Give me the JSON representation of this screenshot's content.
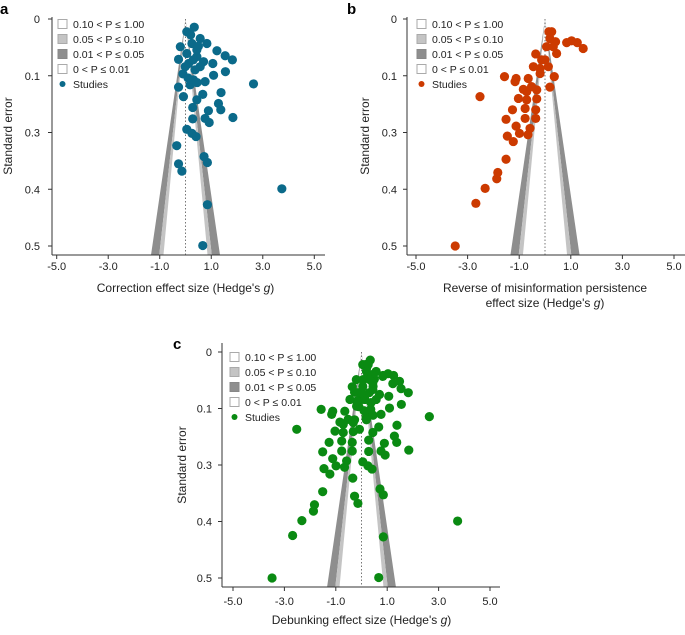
{
  "chart_data": [
    {
      "type": "scatter",
      "subtype": "funnel",
      "panel_label": "a",
      "xlabel": "Correction effect size (Hedge's g)",
      "xlabel_lines": [
        "Correction effect size (Hedge's ",
        "g",
        ")"
      ],
      "ylabel": "Standard error",
      "xlim": [
        -5.5,
        5.5
      ],
      "ylim": [
        0.52,
        -0.01
      ],
      "y_inverted": true,
      "x_ticks": [
        -5,
        -3,
        -1,
        1,
        3,
        5
      ],
      "x_tick_labels": [
        "-5.0",
        "-3.0",
        "-1.0",
        "1.0",
        "3.0",
        "5.0"
      ],
      "y_ticks": [
        0,
        0.125,
        0.25,
        0.375,
        0.5
      ],
      "y_tick_labels": [
        "0",
        "0.1",
        "0.3",
        "0.4",
        "0.5"
      ],
      "funnel_center": 0,
      "point_color": "#0b6a8a",
      "legend": [
        "0.10 < P ≤ 1.00",
        "0.05 < P ≤ 0.10",
        "0.01 < P ≤ 0.05",
        "0 < P ≤ 0.01",
        "Studies"
      ],
      "points": [
        [
          0.34,
          0.018
        ],
        [
          0.05,
          0.028
        ],
        [
          0.57,
          0.043
        ],
        [
          0.83,
          0.054
        ],
        [
          1.22,
          0.07
        ],
        [
          1.54,
          0.081
        ],
        [
          1.82,
          0.09
        ],
        [
          -0.2,
          0.061
        ],
        [
          -0.27,
          0.089
        ],
        [
          0.05,
          0.076
        ],
        [
          0.44,
          0.083
        ],
        [
          0.7,
          0.094
        ],
        [
          1.06,
          0.098
        ],
        [
          1.55,
          0.116
        ],
        [
          1.09,
          0.124
        ],
        [
          -0.1,
          0.121
        ],
        [
          0.31,
          0.134
        ],
        [
          2.64,
          0.143
        ],
        [
          -0.27,
          0.15
        ],
        [
          0.76,
          0.138
        ],
        [
          1.38,
          0.162
        ],
        [
          0.67,
          0.166
        ],
        [
          -0.08,
          0.171
        ],
        [
          0.44,
          0.178
        ],
        [
          1.28,
          0.186
        ],
        [
          0.28,
          0.195
        ],
        [
          0.89,
          0.202
        ],
        [
          1.37,
          0.2
        ],
        [
          1.84,
          0.217
        ],
        [
          0.28,
          0.22
        ],
        [
          0.76,
          0.219
        ],
        [
          0.92,
          0.228
        ],
        [
          0.05,
          0.243
        ],
        [
          0.25,
          0.252
        ],
        [
          0.41,
          0.259
        ],
        [
          -0.34,
          0.279
        ],
        [
          -0.27,
          0.319
        ],
        [
          -0.14,
          0.335
        ],
        [
          0.72,
          0.303
        ],
        [
          0.85,
          0.316
        ],
        [
          3.74,
          0.374
        ],
        [
          0.85,
          0.409
        ],
        [
          0.67,
          0.499
        ],
        [
          0.25,
          0.054
        ],
        [
          0.44,
          0.068
        ],
        [
          0.12,
          0.098
        ],
        [
          0.57,
          0.105
        ],
        [
          0.37,
          0.112
        ],
        [
          0.18,
          0.145
        ],
        [
          -0.01,
          0.105
        ],
        [
          0.2,
          0.035
        ],
        [
          0.5,
          0.06
        ],
        [
          0.3,
          0.09
        ],
        [
          0.1,
          0.13
        ],
        [
          0.45,
          0.14
        ]
      ]
    },
    {
      "type": "scatter",
      "subtype": "funnel",
      "panel_label": "b",
      "xlabel": "Reverse of misinformation persistence effect size (Hedge's g)",
      "xlabel_lines": [
        "Reverse of misinformation persistence",
        "effect size (Hedge's ",
        "g",
        ")"
      ],
      "ylabel": "Standard error",
      "xlim": [
        -5.5,
        5.5
      ],
      "ylim": [
        0.52,
        -0.01
      ],
      "y_inverted": true,
      "x_ticks": [
        -5,
        -3,
        -1,
        1,
        3,
        5
      ],
      "x_tick_labels": [
        "-5.0",
        "-3.0",
        "-1.0",
        "1.0",
        "3.0",
        "5.0"
      ],
      "y_ticks": [
        0,
        0.125,
        0.25,
        0.375,
        0.5
      ],
      "y_tick_labels": [
        "0",
        "0.1",
        "0.3",
        "0.4",
        "0.5"
      ],
      "funnel_center": 0,
      "point_color": "#cc3a00",
      "legend": [
        "0.10 < P ≤ 1.00",
        "0.05 < P ≤ 0.10",
        "0.01 < P ≤ 0.05",
        "0 < P ≤ 0.01",
        "Studies"
      ],
      "points": [
        [
          0.15,
          0.028
        ],
        [
          0.26,
          0.028
        ],
        [
          0.19,
          0.043
        ],
        [
          0.41,
          0.05
        ],
        [
          0.84,
          0.052
        ],
        [
          1.03,
          0.048
        ],
        [
          1.25,
          0.052
        ],
        [
          1.48,
          0.065
        ],
        [
          0.06,
          0.061
        ],
        [
          0.45,
          0.076
        ],
        [
          -0.36,
          0.077
        ],
        [
          -0.13,
          0.09
        ],
        [
          -0.45,
          0.105
        ],
        [
          0.13,
          0.105
        ],
        [
          0.36,
          0.127
        ],
        [
          -0.19,
          0.12
        ],
        [
          -0.65,
          0.131
        ],
        [
          -1.12,
          0.131
        ],
        [
          -1.57,
          0.127
        ],
        [
          -1.16,
          0.138
        ],
        [
          -0.84,
          0.155
        ],
        [
          -0.32,
          0.156
        ],
        [
          0.19,
          0.15
        ],
        [
          -1.03,
          0.175
        ],
        [
          -0.71,
          0.178
        ],
        [
          -0.32,
          0.176
        ],
        [
          -2.52,
          0.171
        ],
        [
          -1.26,
          0.2
        ],
        [
          -0.77,
          0.197
        ],
        [
          -0.36,
          0.2
        ],
        [
          -0.36,
          0.219
        ],
        [
          -1.51,
          0.221
        ],
        [
          -0.77,
          0.219
        ],
        [
          -1.12,
          0.236
        ],
        [
          -0.58,
          0.241
        ],
        [
          -0.99,
          0.252
        ],
        [
          -0.66,
          0.255
        ],
        [
          -1.46,
          0.258
        ],
        [
          -1.23,
          0.27
        ],
        [
          -1.51,
          0.309
        ],
        [
          -1.83,
          0.338
        ],
        [
          -1.87,
          0.352
        ],
        [
          -2.32,
          0.373
        ],
        [
          -2.68,
          0.406
        ],
        [
          -3.48,
          0.5
        ],
        [
          0.32,
          0.061
        ],
        [
          0.0,
          0.09
        ],
        [
          -0.19,
          0.109
        ],
        [
          -0.52,
          0.149
        ],
        [
          -0.71,
          0.16
        ]
      ]
    },
    {
      "type": "scatter",
      "subtype": "funnel",
      "panel_label": "c",
      "xlabel": "Debunking effect size (Hedge's g)",
      "xlabel_lines": [
        "Debunking effect size (Hedge's ",
        "g",
        ")"
      ],
      "ylabel": "Standard error",
      "xlim": [
        -5.5,
        5.5
      ],
      "ylim": [
        0.52,
        -0.01
      ],
      "y_inverted": true,
      "x_ticks": [
        -5,
        -3,
        -1,
        1,
        3,
        5
      ],
      "x_tick_labels": [
        "-5.0",
        "-3.0",
        "-1.0",
        "1.0",
        "3.0",
        "5.0"
      ],
      "y_ticks": [
        0,
        0.125,
        0.25,
        0.375,
        0.5
      ],
      "y_tick_labels": [
        "0",
        "0.1",
        "0.3",
        "0.4",
        "0.5"
      ],
      "funnel_center": 0,
      "point_color": "#0a8a12",
      "legend": [
        "0.10 < P ≤ 1.00",
        "0.05 < P ≤ 0.10",
        "0.01 < P ≤ 0.05",
        "0 < P ≤ 0.01",
        "Studies"
      ],
      "points": [
        [
          0.34,
          0.018
        ],
        [
          0.05,
          0.028
        ],
        [
          0.57,
          0.043
        ],
        [
          0.83,
          0.054
        ],
        [
          1.22,
          0.07
        ],
        [
          1.54,
          0.081
        ],
        [
          1.82,
          0.09
        ],
        [
          -0.2,
          0.061
        ],
        [
          -0.27,
          0.089
        ],
        [
          0.05,
          0.076
        ],
        [
          0.44,
          0.083
        ],
        [
          0.7,
          0.094
        ],
        [
          1.06,
          0.098
        ],
        [
          1.55,
          0.116
        ],
        [
          1.09,
          0.124
        ],
        [
          -0.1,
          0.121
        ],
        [
          0.31,
          0.134
        ],
        [
          2.64,
          0.143
        ],
        [
          -0.27,
          0.15
        ],
        [
          0.76,
          0.138
        ],
        [
          1.38,
          0.162
        ],
        [
          0.67,
          0.166
        ],
        [
          -0.08,
          0.171
        ],
        [
          0.44,
          0.178
        ],
        [
          1.28,
          0.186
        ],
        [
          0.28,
          0.195
        ],
        [
          0.89,
          0.202
        ],
        [
          1.37,
          0.2
        ],
        [
          1.84,
          0.217
        ],
        [
          0.28,
          0.22
        ],
        [
          0.76,
          0.219
        ],
        [
          0.92,
          0.228
        ],
        [
          0.05,
          0.243
        ],
        [
          0.25,
          0.252
        ],
        [
          0.41,
          0.259
        ],
        [
          -0.34,
          0.279
        ],
        [
          -0.27,
          0.319
        ],
        [
          -0.14,
          0.335
        ],
        [
          0.72,
          0.303
        ],
        [
          0.85,
          0.316
        ],
        [
          3.74,
          0.374
        ],
        [
          0.85,
          0.409
        ],
        [
          0.67,
          0.499
        ],
        [
          0.25,
          0.054
        ],
        [
          0.44,
          0.068
        ],
        [
          0.12,
          0.098
        ],
        [
          0.57,
          0.105
        ],
        [
          0.37,
          0.112
        ],
        [
          0.18,
          0.145
        ],
        [
          -0.01,
          0.105
        ],
        [
          0.2,
          0.035
        ],
        [
          0.5,
          0.06
        ],
        [
          0.3,
          0.09
        ],
        [
          0.1,
          0.13
        ],
        [
          0.45,
          0.14
        ],
        [
          0.15,
          0.028
        ],
        [
          0.26,
          0.028
        ],
        [
          0.19,
          0.043
        ],
        [
          0.41,
          0.05
        ],
        [
          0.84,
          0.052
        ],
        [
          1.03,
          0.048
        ],
        [
          1.25,
          0.052
        ],
        [
          1.48,
          0.065
        ],
        [
          0.06,
          0.061
        ],
        [
          0.45,
          0.076
        ],
        [
          -0.36,
          0.077
        ],
        [
          -0.13,
          0.09
        ],
        [
          -0.45,
          0.105
        ],
        [
          0.13,
          0.105
        ],
        [
          0.36,
          0.127
        ],
        [
          -0.19,
          0.12
        ],
        [
          -0.65,
          0.131
        ],
        [
          -1.12,
          0.131
        ],
        [
          -1.57,
          0.127
        ],
        [
          -1.16,
          0.138
        ],
        [
          -0.84,
          0.155
        ],
        [
          -0.32,
          0.156
        ],
        [
          0.19,
          0.15
        ],
        [
          -1.03,
          0.175
        ],
        [
          -0.71,
          0.178
        ],
        [
          -0.32,
          0.176
        ],
        [
          -2.52,
          0.171
        ],
        [
          -1.26,
          0.2
        ],
        [
          -0.77,
          0.197
        ],
        [
          -0.36,
          0.2
        ],
        [
          -0.36,
          0.219
        ],
        [
          -1.51,
          0.221
        ],
        [
          -0.77,
          0.219
        ],
        [
          -1.12,
          0.236
        ],
        [
          -0.58,
          0.241
        ],
        [
          -0.99,
          0.252
        ],
        [
          -0.66,
          0.255
        ],
        [
          -1.46,
          0.258
        ],
        [
          -1.23,
          0.27
        ],
        [
          -1.51,
          0.309
        ],
        [
          -1.83,
          0.338
        ],
        [
          -1.87,
          0.352
        ],
        [
          -2.32,
          0.373
        ],
        [
          -2.68,
          0.406
        ],
        [
          -3.48,
          0.5
        ],
        [
          0.32,
          0.061
        ],
        [
          0.0,
          0.09
        ],
        [
          -0.19,
          0.109
        ],
        [
          -0.52,
          0.149
        ],
        [
          -0.71,
          0.16
        ]
      ]
    }
  ],
  "funnel_band_colors": {
    "0.10 < P ≤ 1.00": "#ffffff",
    "0.05 < P ≤ 0.10": "#c4c4c4",
    "0.01 < P ≤ 0.05": "#8e8e8e",
    "0 < P ≤ 0.01": "#ffffff"
  }
}
